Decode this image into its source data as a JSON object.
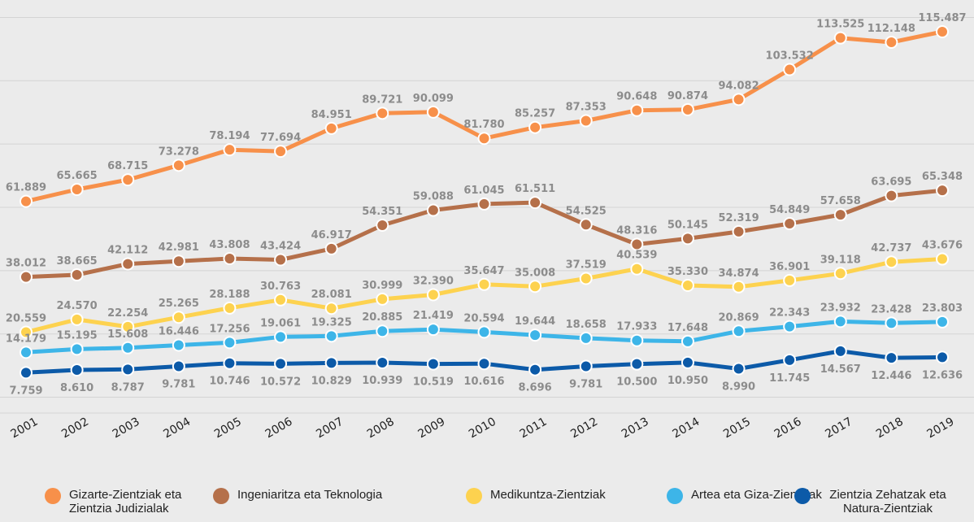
{
  "chart_data": {
    "type": "line",
    "categories": [
      "2001",
      "2002",
      "2003",
      "2004",
      "2005",
      "2006",
      "2007",
      "2008",
      "2009",
      "2010",
      "2011",
      "2012",
      "2013",
      "2014",
      "2015",
      "2016",
      "2017",
      "2018",
      "2019"
    ],
    "ylim": [
      -5000,
      125000
    ],
    "yticks": [
      0,
      20000,
      40000,
      60000,
      80000,
      100000,
      120000
    ],
    "grid": true,
    "legend": "bottom",
    "series": [
      {
        "name": "Gizarte-Zientziak eta Zientzia Judizialak",
        "color": "#f7904a",
        "values": [
          61889,
          65665,
          68715,
          73278,
          78194,
          77694,
          84951,
          89721,
          90099,
          81780,
          85257,
          87353,
          90648,
          90874,
          94082,
          103532,
          113525,
          112148,
          115487
        ],
        "value_labels": [
          "61.889",
          "65.665",
          "68.715",
          "73.278",
          "78.194",
          "77.694",
          "84.951",
          "89.721",
          "90.099",
          "81.780",
          "85.257",
          "87.353",
          "90.648",
          "90.874",
          "94.082",
          "103.532",
          "113.525",
          "112.148",
          "115.487"
        ]
      },
      {
        "name": "Ingeniaritza eta Teknologia",
        "color": "#b5704a",
        "values": [
          38012,
          38665,
          42112,
          42981,
          43808,
          43424,
          46917,
          54351,
          59088,
          61045,
          61511,
          54525,
          48316,
          50145,
          52319,
          54849,
          57658,
          63695,
          65348
        ],
        "value_labels": [
          "38.012",
          "38.665",
          "42.112",
          "42.981",
          "43.808",
          "43.424",
          "46.917",
          "54.351",
          "59.088",
          "61.045",
          "61.511",
          "54.525",
          "48.316",
          "50.145",
          "52.319",
          "54.849",
          "57.658",
          "63.695",
          "65.348"
        ]
      },
      {
        "name": "Medikuntza-Zientziak",
        "color": "#fdd24f",
        "values": [
          20559,
          24570,
          22254,
          25265,
          28188,
          30763,
          28081,
          30999,
          32390,
          35647,
          35008,
          37519,
          40539,
          35330,
          34874,
          36901,
          39118,
          42737,
          43676
        ],
        "value_labels": [
          "20.559",
          "24.570",
          "22.254",
          "25.265",
          "28.188",
          "30.763",
          "28.081",
          "30.999",
          "32.390",
          "35.647",
          "35.008",
          "37.519",
          "40.539",
          "35.330",
          "34.874",
          "36.901",
          "39.118",
          "42.737",
          "43.676"
        ]
      },
      {
        "name": "Artea eta Giza-Zientziak",
        "color": "#3db5e8",
        "values": [
          14179,
          15195,
          15608,
          16446,
          17256,
          19061,
          19325,
          20885,
          21419,
          20594,
          19644,
          18658,
          17933,
          17648,
          20869,
          22343,
          23932,
          23428,
          23803
        ],
        "value_labels": [
          "14.179",
          "15.195",
          "15.608",
          "16.446",
          "17.256",
          "19.061",
          "19.325",
          "20.885",
          "21.419",
          "20.594",
          "19.644",
          "18.658",
          "17.933",
          "17.648",
          "20.869",
          "22.343",
          "23.932",
          "23.428",
          "23.803"
        ]
      },
      {
        "name": "Zientzia Zehatzak eta Natura-Zientziak",
        "color": "#0c5aa8",
        "values": [
          7759,
          8610,
          8787,
          9781,
          10746,
          10572,
          10829,
          10939,
          10519,
          10616,
          8696,
          9781,
          10500,
          10950,
          8990,
          11745,
          14567,
          12446,
          12636
        ],
        "value_labels": [
          "7.759",
          "8.610",
          "8.787",
          "9.781",
          "10.746",
          "10.572",
          "10.829",
          "10.939",
          "10.519",
          "10.616",
          "8.696",
          "9.781",
          "10.500",
          "10.950",
          "8.990",
          "11.745",
          "14.567",
          "12.446",
          "12.636"
        ]
      }
    ]
  }
}
